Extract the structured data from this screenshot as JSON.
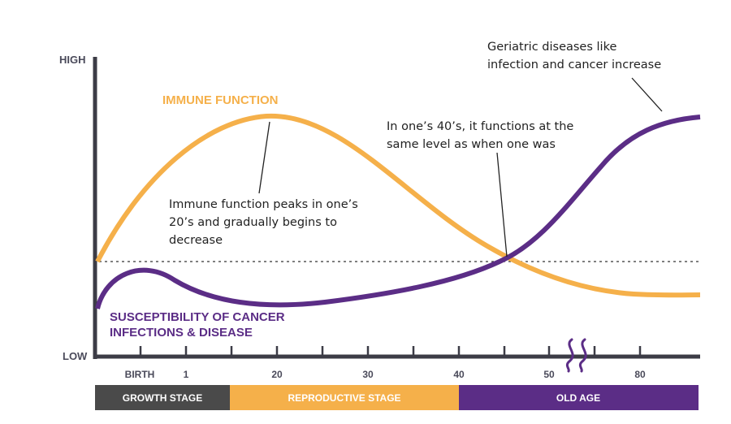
{
  "axis": {
    "y_high": "HIGH",
    "y_low": "LOW",
    "x_ticks": [
      "BIRTH",
      "1",
      "20",
      "30",
      "40",
      "50",
      "80"
    ]
  },
  "series": {
    "immune": {
      "label": "IMMUNE FUNCTION",
      "color": "#f5b04a"
    },
    "susceptibility": {
      "label_line1": "SUSCEPTIBILITY OF CANCER",
      "label_line2": "INFECTIONS & DISEASE",
      "color": "#5b2d86"
    }
  },
  "annotations": {
    "peak": [
      "Immune function peaks in one’s",
      "20’s and gradually begins to",
      "decrease"
    ],
    "forties": [
      "In one’s 40’s, it functions at the",
      "same level as when one was"
    ],
    "geriatric": [
      "Geriatric diseases like",
      "infection and cancer increase"
    ]
  },
  "stages": [
    {
      "label": "GROWTH STAGE",
      "color": "#4a4a4a"
    },
    {
      "label": "REPRODUCTIVE STAGE",
      "color": "#f5b04a"
    },
    {
      "label": "OLD AGE",
      "color": "#5b2d86"
    }
  ],
  "colors": {
    "axis": "#3c3c46",
    "dotted_line": "#333333",
    "text": "#222222"
  }
}
